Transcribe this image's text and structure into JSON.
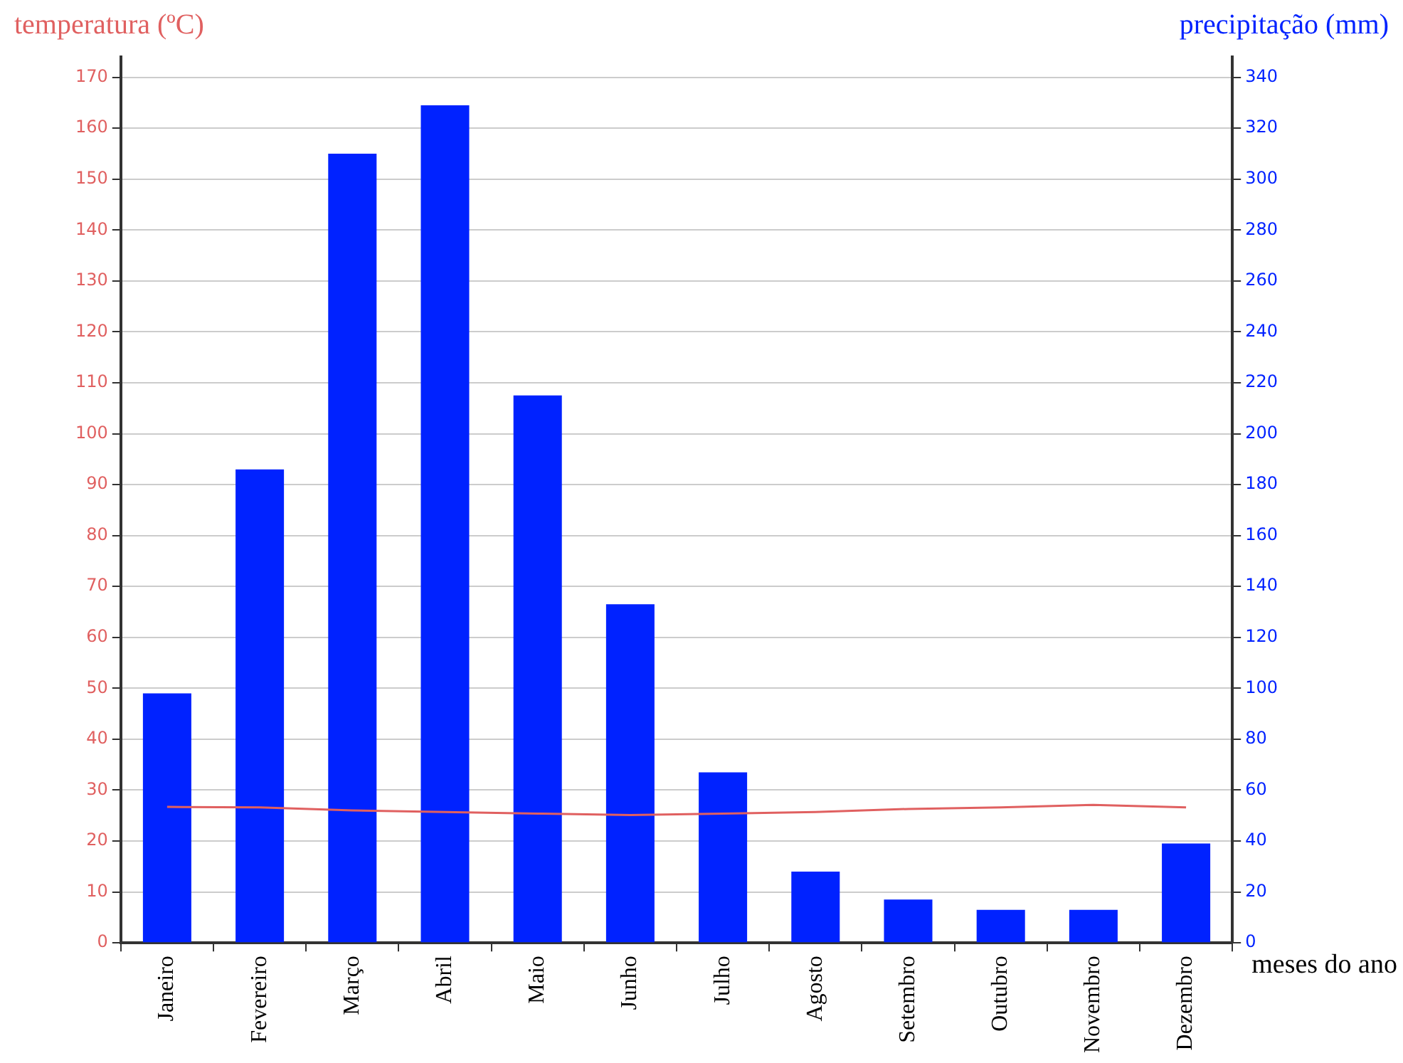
{
  "chart_data": {
    "type": "bar",
    "xlabel": "meses do ano",
    "ylabel": "temperatura (ºC)",
    "y2label": "precipitação (mm)",
    "categories": [
      "Janeiro",
      "Fevereiro",
      "Março",
      "Abril",
      "Maio",
      "Junho",
      "Julho",
      "Agosto",
      "Setembro",
      "Outubro",
      "Novembro",
      "Dezembro"
    ],
    "series": [
      {
        "axis": "y2",
        "color": "#0022ff",
        "values": [
          98,
          186,
          310,
          329,
          215,
          133,
          67,
          28,
          17,
          13,
          13,
          39
        ]
      },
      {
        "type": "line",
        "axis": "y",
        "color": "#e06060",
        "values": [
          26.7,
          26.6,
          26.0,
          25.7,
          25.4,
          25.1,
          25.4,
          25.7,
          26.3,
          26.6,
          27.1,
          26.6
        ]
      }
    ],
    "ylim": [
      0,
      174
    ],
    "yticks": [
      0,
      10,
      20,
      30,
      40,
      50,
      60,
      70,
      80,
      90,
      100,
      110,
      120,
      130,
      140,
      150,
      160,
      170
    ],
    "y2lim": [
      0,
      348
    ],
    "y2ticks": [
      0,
      20,
      40,
      60,
      80,
      100,
      120,
      140,
      160,
      180,
      200,
      220,
      240,
      260,
      280,
      300,
      320,
      340
    ],
    "grid": "y",
    "legend": false,
    "marker": "none",
    "line_style": "solid"
  }
}
